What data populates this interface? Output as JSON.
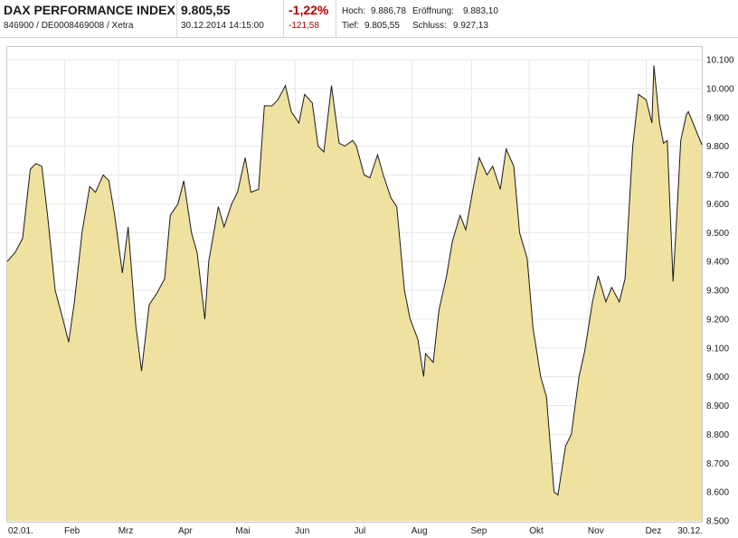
{
  "header": {
    "name": "DAX PERFORMANCE INDEX",
    "ids": "846900 / DE0008469008 / Xetra",
    "last": "9.805,55",
    "datetime": "30.12.2014 14:15:00",
    "change_pct": "-1,22%",
    "change_abs": "-121,58",
    "hoch_label": "Hoch:",
    "hoch_value": "9.886,78",
    "tief_label": "Tief:",
    "tief_value": "9.805,55",
    "eroeffnung_label": "Eröffnung:",
    "eroeffnung_value": "9.883,10",
    "schluss_label": "Schluss:",
    "schluss_value": "9.927,13"
  },
  "colors": {
    "area_fill": "#efe1a0",
    "line": "#1a1a1a",
    "negative": "#b00000",
    "grid": "#e6e6e6"
  },
  "chart_data": {
    "type": "area",
    "title": "",
    "xlabel": "",
    "ylabel": "",
    "ylim": [
      8500,
      10100
    ],
    "grid": true,
    "x_tick_labels": [
      "02.01.",
      "Feb",
      "Mrz",
      "Apr",
      "Mai",
      "Jun",
      "Jul",
      "Aug",
      "Sep",
      "Okt",
      "Nov",
      "Dez",
      "30.12."
    ],
    "y_tick_labels": [
      "10.100",
      "10.000",
      "9.900",
      "9.800",
      "9.700",
      "9.600",
      "9.500",
      "9.400",
      "9.300",
      "9.200",
      "9.100",
      "9.000",
      "8.900",
      "8.800",
      "8.700",
      "8.600",
      "8.500"
    ],
    "y_ticks": [
      10100,
      10000,
      9900,
      9800,
      9700,
      9600,
      9500,
      9400,
      9300,
      9200,
      9100,
      9000,
      8900,
      8800,
      8700,
      8600,
      8500
    ],
    "series": [
      {
        "x": [
          "2014-01-02",
          "2014-01-06",
          "2014-01-10",
          "2014-01-14",
          "2014-01-17",
          "2014-01-20",
          "2014-01-23",
          "2014-01-27",
          "2014-01-31",
          "2014-02-03",
          "2014-02-06",
          "2014-02-10",
          "2014-02-14",
          "2014-02-17",
          "2014-02-21",
          "2014-02-24",
          "2014-02-27",
          "2014-03-03",
          "2014-03-06",
          "2014-03-10",
          "2014-03-13",
          "2014-03-17",
          "2014-03-21",
          "2014-03-25",
          "2014-03-28",
          "2014-04-01",
          "2014-04-04",
          "2014-04-08",
          "2014-04-11",
          "2014-04-15",
          "2014-04-17",
          "2014-04-22",
          "2014-04-25",
          "2014-04-29",
          "2014-05-02",
          "2014-05-06",
          "2014-05-09",
          "2014-05-13",
          "2014-05-16",
          "2014-05-20",
          "2014-05-23",
          "2014-05-27",
          "2014-05-30",
          "2014-06-03",
          "2014-06-06",
          "2014-06-10",
          "2014-06-13",
          "2014-06-16",
          "2014-06-20",
          "2014-06-24",
          "2014-06-27",
          "2014-07-01",
          "2014-07-03",
          "2014-07-07",
          "2014-07-10",
          "2014-07-14",
          "2014-07-17",
          "2014-07-21",
          "2014-07-24",
          "2014-07-28",
          "2014-07-31",
          "2014-08-04",
          "2014-08-07",
          "2014-08-08",
          "2014-08-12",
          "2014-08-15",
          "2014-08-19",
          "2014-08-22",
          "2014-08-26",
          "2014-08-29",
          "2014-09-02",
          "2014-09-05",
          "2014-09-09",
          "2014-09-12",
          "2014-09-16",
          "2014-09-19",
          "2014-09-23",
          "2014-09-26",
          "2014-09-30",
          "2014-10-03",
          "2014-10-07",
          "2014-10-10",
          "2014-10-14",
          "2014-10-16",
          "2014-10-20",
          "2014-10-23",
          "2014-10-27",
          "2014-10-30",
          "2014-11-03",
          "2014-11-06",
          "2014-11-10",
          "2014-11-13",
          "2014-11-17",
          "2014-11-20",
          "2014-11-24",
          "2014-11-27",
          "2014-12-01",
          "2014-12-04",
          "2014-12-05",
          "2014-12-08",
          "2014-12-10",
          "2014-12-12",
          "2014-12-15",
          "2014-12-17",
          "2014-12-19",
          "2014-12-22",
          "2014-12-23",
          "2014-12-30"
        ],
        "values": [
          9400,
          9430,
          9480,
          9720,
          9740,
          9730,
          9560,
          9300,
          9200,
          9120,
          9260,
          9500,
          9660,
          9640,
          9700,
          9680,
          9560,
          9360,
          9520,
          9180,
          9020,
          9250,
          9290,
          9340,
          9560,
          9600,
          9680,
          9500,
          9430,
          9200,
          9400,
          9590,
          9520,
          9600,
          9640,
          9760,
          9640,
          9650,
          9940,
          9940,
          9960,
          10010,
          9920,
          9880,
          9980,
          9950,
          9800,
          9780,
          10010,
          9810,
          9800,
          9820,
          9800,
          9700,
          9690,
          9770,
          9700,
          9620,
          9590,
          9300,
          9200,
          9130,
          9000,
          9080,
          9050,
          9230,
          9350,
          9470,
          9560,
          9510,
          9660,
          9760,
          9700,
          9730,
          9650,
          9790,
          9730,
          9500,
          9410,
          9170,
          9000,
          8930,
          8600,
          8590,
          8760,
          8800,
          9000,
          9090,
          9260,
          9350,
          9260,
          9310,
          9260,
          9340,
          9800,
          9980,
          9960,
          9880,
          10080,
          9880,
          9810,
          9820,
          9330,
          9560,
          9820,
          9910,
          9920,
          9805
        ]
      }
    ]
  }
}
